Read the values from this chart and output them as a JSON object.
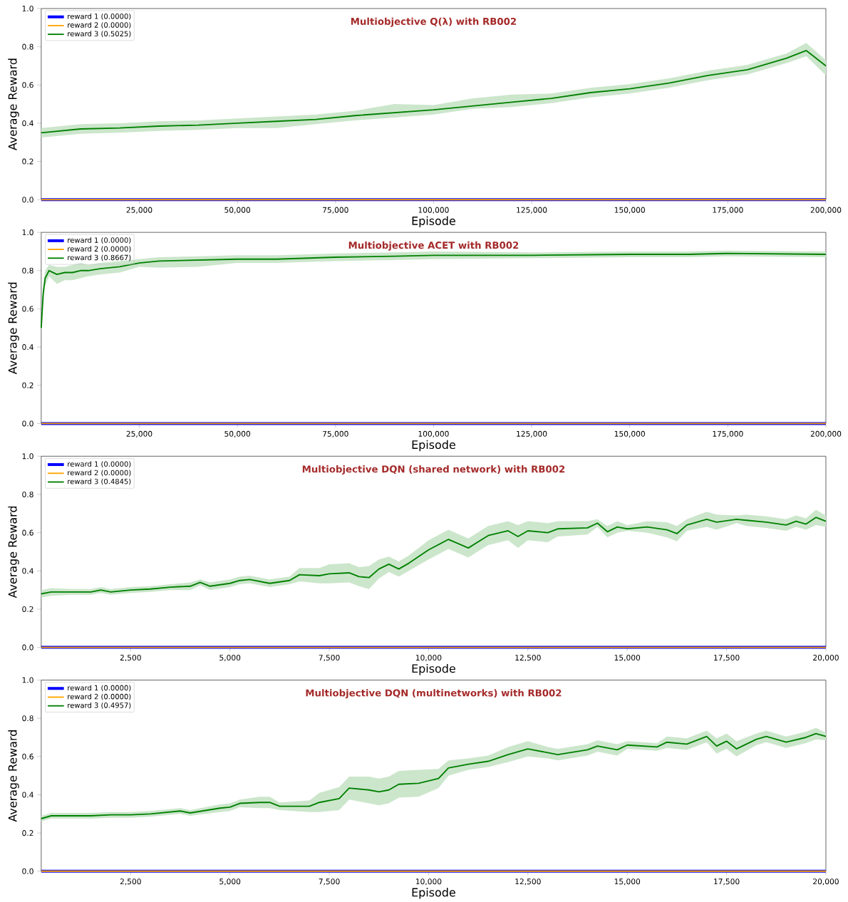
{
  "chart_data": [
    {
      "type": "line",
      "title": "Multiobjective Q(λ) with RB002",
      "xlabel": "Episode",
      "ylabel": "Average Reward",
      "xlim": [
        0,
        200000
      ],
      "ylim": [
        0,
        1
      ],
      "xticks": [
        {
          "value": 25000,
          "label": "25,000"
        },
        {
          "value": 50000,
          "label": "50,000"
        },
        {
          "value": 75000,
          "label": "75,000"
        },
        {
          "value": 100000,
          "label": "100,000"
        },
        {
          "value": 125000,
          "label": "125,000"
        },
        {
          "value": 150000,
          "label": "150,000"
        },
        {
          "value": 175000,
          "label": "175,000"
        },
        {
          "value": 200000,
          "label": "200,000"
        }
      ],
      "yticks": [
        {
          "value": 0,
          "label": "0.0"
        },
        {
          "value": 0.2,
          "label": "0.2"
        },
        {
          "value": 0.4,
          "label": "0.4"
        },
        {
          "value": 0.6,
          "label": "0.6"
        },
        {
          "value": 0.8,
          "label": "0.8"
        },
        {
          "value": 1,
          "label": "1.0"
        }
      ],
      "legend": "top left",
      "marker": "none",
      "line_style": "solid",
      "series": [
        {
          "name": "reward 1 (0.0000)",
          "color": "#0000ff",
          "x": [
            0,
            200000
          ],
          "values": [
            0,
            0
          ]
        },
        {
          "name": "reward 2 (0.0000)",
          "color": "#ffa500",
          "x": [
            0,
            200000
          ],
          "values": [
            0,
            0
          ]
        },
        {
          "name": "reward 3 (0.5025)",
          "color": "#008000",
          "x": [
            0,
            10000,
            20000,
            30000,
            40000,
            50000,
            60000,
            70000,
            80000,
            90000,
            100000,
            110000,
            120000,
            130000,
            140000,
            150000,
            160000,
            170000,
            180000,
            190000,
            195000,
            200000
          ],
          "values": [
            0.35,
            0.37,
            0.375,
            0.385,
            0.39,
            0.4,
            0.41,
            0.42,
            0.44,
            0.455,
            0.47,
            0.49,
            0.51,
            0.53,
            0.56,
            0.58,
            0.61,
            0.65,
            0.68,
            0.74,
            0.78,
            0.7
          ],
          "lower": [
            0.325,
            0.345,
            0.35,
            0.36,
            0.365,
            0.375,
            0.375,
            0.395,
            0.415,
            0.43,
            0.445,
            0.475,
            0.485,
            0.505,
            0.535,
            0.555,
            0.585,
            0.625,
            0.655,
            0.715,
            0.75,
            0.65
          ],
          "upper": [
            0.375,
            0.395,
            0.4,
            0.41,
            0.415,
            0.425,
            0.435,
            0.445,
            0.465,
            0.5,
            0.495,
            0.53,
            0.55,
            0.555,
            0.585,
            0.605,
            0.635,
            0.675,
            0.705,
            0.765,
            0.82,
            0.73
          ]
        }
      ]
    },
    {
      "type": "line",
      "title": "Multiobjective ACET with RB002",
      "xlabel": "Episode",
      "ylabel": "Average Reward",
      "xlim": [
        0,
        200000
      ],
      "ylim": [
        0,
        1
      ],
      "xticks": [
        {
          "value": 25000,
          "label": "25,000"
        },
        {
          "value": 50000,
          "label": "50,000"
        },
        {
          "value": 75000,
          "label": "75,000"
        },
        {
          "value": 100000,
          "label": "100,000"
        },
        {
          "value": 125000,
          "label": "125,000"
        },
        {
          "value": 150000,
          "label": "150,000"
        },
        {
          "value": 175000,
          "label": "175,000"
        },
        {
          "value": 200000,
          "label": "200,000"
        }
      ],
      "yticks": [
        {
          "value": 0,
          "label": "0.0"
        },
        {
          "value": 0.2,
          "label": "0.2"
        },
        {
          "value": 0.4,
          "label": "0.4"
        },
        {
          "value": 0.6,
          "label": "0.6"
        },
        {
          "value": 0.8,
          "label": "0.8"
        },
        {
          "value": 1,
          "label": "1.0"
        }
      ],
      "legend": "top left",
      "marker": "none",
      "line_style": "solid",
      "series": [
        {
          "name": "reward 1 (0.0000)",
          "color": "#0000ff",
          "x": [
            0,
            200000
          ],
          "values": [
            0,
            0
          ]
        },
        {
          "name": "reward 2 (0.0000)",
          "color": "#ffa500",
          "x": [
            0,
            200000
          ],
          "values": [
            0,
            0
          ]
        },
        {
          "name": "reward 3 (0.8667)",
          "color": "#008000",
          "x": [
            0,
            500,
            1000,
            2000,
            4000,
            6000,
            8000,
            10000,
            12000,
            15000,
            20000,
            25000,
            30000,
            40000,
            50000,
            60000,
            75000,
            90000,
            100000,
            125000,
            150000,
            165000,
            175000,
            200000
          ],
          "values": [
            0.5,
            0.68,
            0.76,
            0.8,
            0.78,
            0.79,
            0.79,
            0.8,
            0.8,
            0.81,
            0.82,
            0.84,
            0.85,
            0.855,
            0.86,
            0.86,
            0.87,
            0.875,
            0.88,
            0.88,
            0.885,
            0.885,
            0.89,
            0.885
          ],
          "lower": [
            0.48,
            0.62,
            0.72,
            0.77,
            0.73,
            0.75,
            0.75,
            0.76,
            0.77,
            0.78,
            0.79,
            0.82,
            0.815,
            0.82,
            0.84,
            0.84,
            0.85,
            0.855,
            0.86,
            0.865,
            0.87,
            0.87,
            0.875,
            0.87
          ],
          "upper": [
            0.52,
            0.72,
            0.8,
            0.83,
            0.82,
            0.82,
            0.83,
            0.84,
            0.83,
            0.84,
            0.85,
            0.86,
            0.87,
            0.875,
            0.88,
            0.88,
            0.89,
            0.895,
            0.9,
            0.895,
            0.9,
            0.9,
            0.905,
            0.9
          ]
        }
      ]
    },
    {
      "type": "line",
      "title": "Multiobjective DQN (shared network) with RB002",
      "xlabel": "Episode",
      "ylabel": "Average Reward",
      "xlim": [
        250,
        20000
      ],
      "ylim": [
        0,
        1
      ],
      "xticks": [
        {
          "value": 2500,
          "label": "2,500"
        },
        {
          "value": 5000,
          "label": "5,000"
        },
        {
          "value": 7500,
          "label": "7,500"
        },
        {
          "value": 10000,
          "label": "10,000"
        },
        {
          "value": 12500,
          "label": "12,500"
        },
        {
          "value": 15000,
          "label": "15,000"
        },
        {
          "value": 17500,
          "label": "17,500"
        },
        {
          "value": 20000,
          "label": "20,000"
        }
      ],
      "yticks": [
        {
          "value": 0,
          "label": "0.0"
        },
        {
          "value": 0.2,
          "label": "0.2"
        },
        {
          "value": 0.4,
          "label": "0.4"
        },
        {
          "value": 0.6,
          "label": "0.6"
        },
        {
          "value": 0.8,
          "label": "0.8"
        },
        {
          "value": 1,
          "label": "1.0"
        }
      ],
      "legend": "top left",
      "marker": "none",
      "line_style": "solid",
      "series": [
        {
          "name": "reward 1 (0.0000)",
          "color": "#0000ff",
          "x": [
            250,
            20000
          ],
          "values": [
            0,
            0
          ]
        },
        {
          "name": "reward 2 (0.0000)",
          "color": "#ffa500",
          "x": [
            250,
            20000
          ],
          "values": [
            0,
            0
          ]
        },
        {
          "name": "reward 3 (0.4845)",
          "color": "#008000",
          "x": [
            250,
            500,
            1000,
            1500,
            1750,
            2000,
            2500,
            3000,
            3500,
            4000,
            4250,
            4500,
            5000,
            5250,
            5500,
            6000,
            6500,
            6750,
            7250,
            7500,
            8000,
            8250,
            8500,
            8750,
            9000,
            9250,
            9500,
            10000,
            10500,
            11000,
            11500,
            12000,
            12250,
            12500,
            13000,
            13250,
            14000,
            14250,
            14500,
            14750,
            15000,
            15500,
            16000,
            16250,
            16500,
            17000,
            17250,
            17750,
            18000,
            18500,
            19000,
            19250,
            19500,
            19750,
            20000
          ],
          "values": [
            0.28,
            0.29,
            0.29,
            0.29,
            0.3,
            0.29,
            0.3,
            0.305,
            0.315,
            0.32,
            0.34,
            0.32,
            0.335,
            0.35,
            0.355,
            0.335,
            0.35,
            0.38,
            0.375,
            0.385,
            0.39,
            0.37,
            0.365,
            0.41,
            0.435,
            0.41,
            0.44,
            0.51,
            0.565,
            0.52,
            0.585,
            0.61,
            0.58,
            0.61,
            0.6,
            0.62,
            0.625,
            0.65,
            0.605,
            0.63,
            0.62,
            0.63,
            0.615,
            0.595,
            0.64,
            0.67,
            0.655,
            0.67,
            0.665,
            0.655,
            0.64,
            0.66,
            0.645,
            0.68,
            0.66
          ],
          "lower": [
            0.26,
            0.27,
            0.275,
            0.275,
            0.285,
            0.275,
            0.285,
            0.29,
            0.3,
            0.3,
            0.325,
            0.3,
            0.315,
            0.33,
            0.335,
            0.315,
            0.33,
            0.345,
            0.335,
            0.335,
            0.34,
            0.32,
            0.305,
            0.36,
            0.395,
            0.37,
            0.4,
            0.46,
            0.515,
            0.47,
            0.535,
            0.56,
            0.52,
            0.56,
            0.55,
            0.58,
            0.59,
            0.63,
            0.575,
            0.6,
            0.61,
            0.6,
            0.575,
            0.555,
            0.61,
            0.63,
            0.615,
            0.65,
            0.635,
            0.625,
            0.61,
            0.63,
            0.615,
            0.64,
            0.63
          ],
          "upper": [
            0.3,
            0.31,
            0.305,
            0.305,
            0.315,
            0.305,
            0.315,
            0.32,
            0.33,
            0.34,
            0.355,
            0.34,
            0.355,
            0.37,
            0.375,
            0.355,
            0.37,
            0.415,
            0.415,
            0.435,
            0.44,
            0.42,
            0.425,
            0.46,
            0.475,
            0.45,
            0.48,
            0.56,
            0.615,
            0.57,
            0.635,
            0.66,
            0.64,
            0.66,
            0.65,
            0.66,
            0.66,
            0.67,
            0.635,
            0.66,
            0.64,
            0.66,
            0.655,
            0.635,
            0.67,
            0.71,
            0.695,
            0.69,
            0.695,
            0.685,
            0.67,
            0.69,
            0.675,
            0.72,
            0.69
          ]
        }
      ]
    },
    {
      "type": "line",
      "title": "Multiobjective DQN (multinetworks) with RB002",
      "xlabel": "Episode",
      "ylabel": "Average Reward",
      "xlim": [
        250,
        20000
      ],
      "ylim": [
        0,
        1
      ],
      "xticks": [
        {
          "value": 2500,
          "label": "2,500"
        },
        {
          "value": 5000,
          "label": "5,000"
        },
        {
          "value": 7500,
          "label": "7,500"
        },
        {
          "value": 10000,
          "label": "10,000"
        },
        {
          "value": 12500,
          "label": "12,500"
        },
        {
          "value": 15000,
          "label": "15,000"
        },
        {
          "value": 17500,
          "label": "17,500"
        },
        {
          "value": 20000,
          "label": "20,000"
        }
      ],
      "yticks": [
        {
          "value": 0,
          "label": "0.0"
        },
        {
          "value": 0.2,
          "label": "0.2"
        },
        {
          "value": 0.4,
          "label": "0.4"
        },
        {
          "value": 0.6,
          "label": "0.6"
        },
        {
          "value": 0.8,
          "label": "0.8"
        },
        {
          "value": 1,
          "label": "1.0"
        }
      ],
      "legend": "top left",
      "marker": "none",
      "line_style": "solid",
      "series": [
        {
          "name": "reward 1 (0.0000)",
          "color": "#0000ff",
          "x": [
            250,
            20000
          ],
          "values": [
            0,
            0
          ]
        },
        {
          "name": "reward 2 (0.0000)",
          "color": "#ffa500",
          "x": [
            250,
            20000
          ],
          "values": [
            0,
            0
          ]
        },
        {
          "name": "reward 3 (0.4957)",
          "color": "#008000",
          "x": [
            250,
            500,
            1000,
            1500,
            2000,
            2500,
            3000,
            3750,
            4000,
            4750,
            5000,
            5250,
            5750,
            6000,
            6250,
            7000,
            7250,
            7750,
            8000,
            8500,
            8750,
            9000,
            9250,
            9750,
            10250,
            10500,
            11000,
            11500,
            12000,
            12500,
            13000,
            13250,
            14000,
            14250,
            14750,
            15000,
            15750,
            16000,
            16500,
            17000,
            17250,
            17500,
            17750,
            18250,
            18500,
            19000,
            19500,
            19750,
            20000
          ],
          "values": [
            0.275,
            0.29,
            0.29,
            0.29,
            0.295,
            0.295,
            0.3,
            0.315,
            0.305,
            0.33,
            0.335,
            0.355,
            0.36,
            0.36,
            0.34,
            0.34,
            0.36,
            0.38,
            0.435,
            0.425,
            0.415,
            0.425,
            0.455,
            0.46,
            0.485,
            0.54,
            0.56,
            0.575,
            0.61,
            0.64,
            0.62,
            0.61,
            0.635,
            0.655,
            0.635,
            0.66,
            0.65,
            0.675,
            0.665,
            0.705,
            0.655,
            0.68,
            0.64,
            0.69,
            0.705,
            0.675,
            0.7,
            0.72,
            0.705
          ],
          "lower": [
            0.26,
            0.275,
            0.275,
            0.275,
            0.28,
            0.28,
            0.285,
            0.3,
            0.29,
            0.31,
            0.315,
            0.335,
            0.33,
            0.33,
            0.32,
            0.31,
            0.31,
            0.32,
            0.375,
            0.355,
            0.345,
            0.355,
            0.385,
            0.39,
            0.435,
            0.5,
            0.53,
            0.545,
            0.57,
            0.6,
            0.59,
            0.58,
            0.605,
            0.625,
            0.605,
            0.64,
            0.63,
            0.645,
            0.635,
            0.675,
            0.615,
            0.64,
            0.6,
            0.66,
            0.675,
            0.645,
            0.67,
            0.69,
            0.685
          ],
          "upper": [
            0.29,
            0.305,
            0.305,
            0.305,
            0.31,
            0.31,
            0.315,
            0.33,
            0.32,
            0.35,
            0.355,
            0.375,
            0.39,
            0.39,
            0.36,
            0.37,
            0.41,
            0.44,
            0.495,
            0.495,
            0.485,
            0.495,
            0.525,
            0.53,
            0.535,
            0.58,
            0.59,
            0.605,
            0.65,
            0.68,
            0.65,
            0.64,
            0.665,
            0.685,
            0.665,
            0.68,
            0.67,
            0.705,
            0.695,
            0.735,
            0.695,
            0.72,
            0.68,
            0.72,
            0.735,
            0.705,
            0.73,
            0.75,
            0.725
          ]
        }
      ]
    }
  ]
}
